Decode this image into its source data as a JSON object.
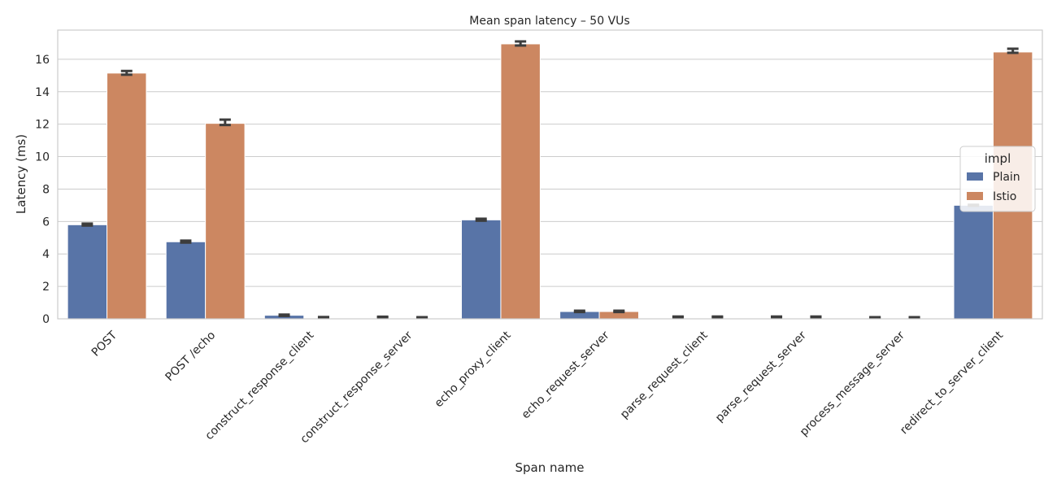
{
  "chart_data": {
    "type": "bar",
    "title": "Mean span latency – 50 VUs",
    "xlabel": "Span name",
    "ylabel": "Latency (ms)",
    "ylim": [
      0,
      17.8
    ],
    "yticks": [
      0,
      2,
      4,
      6,
      8,
      10,
      12,
      14,
      16
    ],
    "grid": true,
    "categories": [
      "POST",
      "POST /echo",
      "construct_response_client",
      "construct_response_server",
      "echo_proxy_client",
      "echo_request_server",
      "parse_request_client",
      "parse_request_server",
      "process_message_server",
      "redirect_to_server_client"
    ],
    "legend": {
      "title": "impl",
      "placement": "center-right"
    },
    "series": [
      {
        "name": "Plain",
        "color": "#5874a7",
        "values": [
          5.8,
          4.75,
          0.22,
          0.0,
          6.1,
          0.45,
          0.0,
          0.0,
          0.0,
          7.0
        ],
        "err_low": [
          5.75,
          4.7,
          0.18,
          0.09,
          6.05,
          0.42,
          0.1,
          0.1,
          0.07,
          6.97
        ],
        "err_high": [
          5.87,
          4.82,
          0.26,
          0.13,
          6.17,
          0.5,
          0.14,
          0.14,
          0.1,
          7.03
        ]
      },
      {
        "name": "Istio",
        "color": "#cc8761",
        "values": [
          15.15,
          12.05,
          0.0,
          0.0,
          16.95,
          0.45,
          0.0,
          0.0,
          0.0,
          16.45
        ],
        "err_low": [
          15.05,
          11.95,
          0.08,
          0.07,
          16.85,
          0.42,
          0.1,
          0.1,
          0.07,
          16.4
        ],
        "err_high": [
          15.28,
          12.28,
          0.11,
          0.1,
          17.1,
          0.5,
          0.14,
          0.14,
          0.1,
          16.65
        ]
      }
    ]
  }
}
